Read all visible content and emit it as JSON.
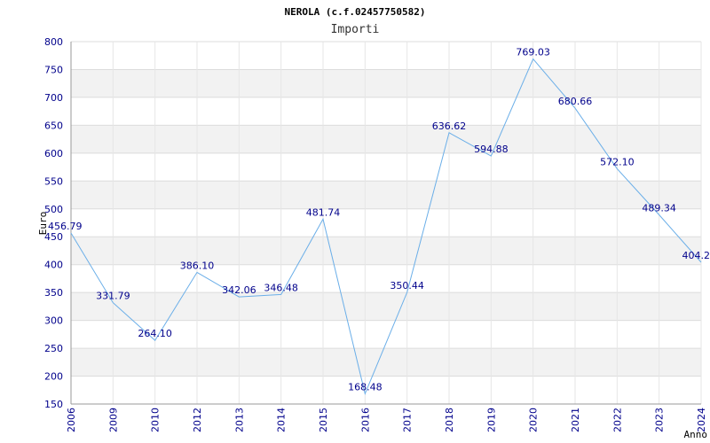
{
  "chart_data": {
    "type": "line",
    "title": "NEROLA (c.f.02457750582)",
    "subtitle": "Importi",
    "xlabel": "Anno",
    "ylabel": "Euro",
    "ylim": [
      150,
      800
    ],
    "yticks": [
      150,
      200,
      250,
      300,
      350,
      400,
      450,
      500,
      550,
      600,
      650,
      700,
      750,
      800
    ],
    "grid": true,
    "colors": {
      "line": "#6aaee8",
      "axis_text": "#00008b",
      "band": "#f2f2f2"
    },
    "x": [
      "2006",
      "2009",
      "2010",
      "2012",
      "2013",
      "2014",
      "2015",
      "2016",
      "2017",
      "2018",
      "2019",
      "2020",
      "2021",
      "2022",
      "2023",
      "2024"
    ],
    "series": [
      {
        "values": [
          456.79,
          331.79,
          264.1,
          386.1,
          342.06,
          346.48,
          481.74,
          168.48,
          350.44,
          636.62,
          594.88,
          769.03,
          680.66,
          572.1,
          489.34,
          404.2
        ],
        "labels": [
          "456.79",
          "331.79",
          "264.10",
          "386.10",
          "342.06",
          "346.48",
          "481.74",
          "168.48",
          "350.44",
          "636.62",
          "594.88",
          "769.03",
          "680.66",
          "572.10",
          "489.34",
          "404.2"
        ]
      }
    ]
  }
}
